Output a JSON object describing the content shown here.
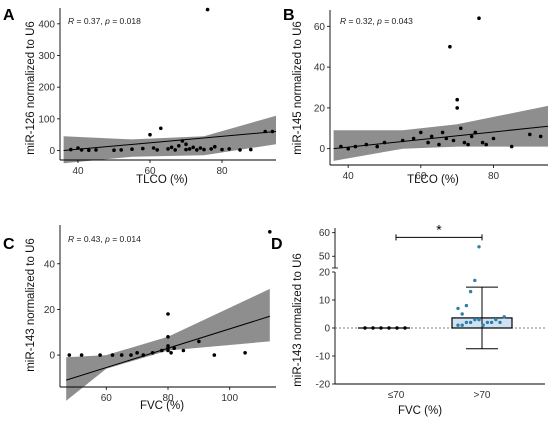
{
  "chart_data": [
    {
      "type": "scatter",
      "panel": "A",
      "xlabel": "TLCO (%)",
      "ylabel": "miR-126 normalized to U6",
      "annotation": "R = 0.37, p = 0.018",
      "xlim": [
        35,
        95
      ],
      "ylim": [
        -30,
        450
      ],
      "xticks": [
        40,
        60,
        80
      ],
      "yticks": [
        0,
        100,
        200,
        300,
        400
      ],
      "fit": {
        "x": [
          36,
          95
        ],
        "y": [
          0,
          60
        ],
        "lower": [
          -40,
          20
        ],
        "upper": [
          45,
          110
        ],
        "band_x": [
          36,
          55,
          75,
          95
        ],
        "band_lo": [
          -40,
          -20,
          -15,
          20
        ],
        "band_hi": [
          45,
          35,
          45,
          110
        ]
      },
      "points": [
        [
          38,
          3
        ],
        [
          40,
          8
        ],
        [
          41,
          2
        ],
        [
          43,
          1
        ],
        [
          45,
          2
        ],
        [
          50,
          1
        ],
        [
          52,
          2
        ],
        [
          55,
          4
        ],
        [
          58,
          6
        ],
        [
          60,
          50
        ],
        [
          61,
          8
        ],
        [
          62,
          2
        ],
        [
          63,
          70
        ],
        [
          65,
          5
        ],
        [
          66,
          10
        ],
        [
          67,
          2
        ],
        [
          68,
          15
        ],
        [
          69,
          30
        ],
        [
          70,
          3
        ],
        [
          70,
          20
        ],
        [
          71,
          5
        ],
        [
          72,
          10
        ],
        [
          73,
          2
        ],
        [
          74,
          8
        ],
        [
          75,
          3
        ],
        [
          76,
          445
        ],
        [
          77,
          5
        ],
        [
          78,
          12
        ],
        [
          80,
          3
        ],
        [
          82,
          5
        ],
        [
          85,
          2
        ],
        [
          88,
          3
        ],
        [
          92,
          60
        ],
        [
          94,
          60
        ]
      ]
    },
    {
      "type": "scatter",
      "panel": "B",
      "xlabel": "TLCO (%)",
      "ylabel": "miR-145 normalized to U6",
      "annotation": "R = 0.32, p = 0.043",
      "xlim": [
        35,
        95
      ],
      "ylim": [
        -8,
        68
      ],
      "xticks": [
        40,
        60,
        80
      ],
      "yticks": [
        0,
        20,
        40,
        60
      ],
      "fit": {
        "band_x": [
          36,
          55,
          70,
          95
        ],
        "band_lo": [
          -6,
          0,
          1,
          1
        ],
        "band_hi": [
          9,
          9,
          12,
          21
        ],
        "line_x": [
          36,
          95
        ],
        "line_y": [
          0,
          11
        ]
      },
      "points": [
        [
          38,
          1
        ],
        [
          40,
          0
        ],
        [
          42,
          1
        ],
        [
          45,
          2
        ],
        [
          48,
          1
        ],
        [
          50,
          3
        ],
        [
          55,
          4
        ],
        [
          58,
          5
        ],
        [
          60,
          8
        ],
        [
          62,
          3
        ],
        [
          63,
          6
        ],
        [
          65,
          2
        ],
        [
          66,
          8
        ],
        [
          67,
          5
        ],
        [
          68,
          50
        ],
        [
          69,
          4
        ],
        [
          70,
          24
        ],
        [
          70,
          20
        ],
        [
          71,
          10
        ],
        [
          72,
          3
        ],
        [
          73,
          2
        ],
        [
          74,
          6
        ],
        [
          75,
          8
        ],
        [
          76,
          64
        ],
        [
          77,
          3
        ],
        [
          78,
          2
        ],
        [
          80,
          5
        ],
        [
          85,
          1
        ],
        [
          90,
          7
        ],
        [
          93,
          6
        ]
      ]
    },
    {
      "type": "scatter",
      "panel": "C",
      "xlabel": "FVC (%)",
      "ylabel": "miR-143 normalized to U6",
      "annotation": "R = 0.43, p = 0.014",
      "xlim": [
        45,
        115
      ],
      "ylim": [
        -14,
        57
      ],
      "xticks": [
        60,
        80,
        100
      ],
      "yticks": [
        0,
        20,
        40
      ],
      "fit": {
        "band_x": [
          47,
          60,
          80,
          113
        ],
        "band_lo": [
          -20,
          -6,
          2,
          6
        ],
        "band_hi": [
          -1,
          0,
          8,
          29
        ],
        "line_x": [
          47,
          113
        ],
        "line_y": [
          -11,
          17
        ]
      },
      "points": [
        [
          48,
          0
        ],
        [
          52,
          0
        ],
        [
          58,
          0
        ],
        [
          62,
          0
        ],
        [
          65,
          0
        ],
        [
          68,
          0
        ],
        [
          70,
          1
        ],
        [
          72,
          0
        ],
        [
          75,
          1
        ],
        [
          78,
          2
        ],
        [
          80,
          18
        ],
        [
          80,
          8
        ],
        [
          80,
          4
        ],
        [
          80,
          3
        ],
        [
          80,
          2
        ],
        [
          81,
          1
        ],
        [
          82,
          3
        ],
        [
          85,
          2
        ],
        [
          90,
          6
        ],
        [
          95,
          0
        ],
        [
          105,
          1
        ],
        [
          113,
          54
        ]
      ]
    },
    {
      "type": "bar",
      "panel": "D",
      "xlabel": "FVC (%)",
      "ylabel": "miR-143 normalized to U6",
      "categories": [
        "≤70",
        ">70"
      ],
      "values": [
        0,
        3.6
      ],
      "error": [
        0,
        11
      ],
      "significance": "*",
      "ylim_lower": [
        -20,
        20
      ],
      "yticks_lower": [
        -20,
        -10,
        0,
        10,
        20
      ],
      "ylim_upper": [
        45,
        62
      ],
      "yticks_upper": [
        50,
        60
      ],
      "points_low": [
        [
          0,
          0
        ],
        [
          0,
          0
        ],
        [
          0,
          0
        ],
        [
          0,
          0
        ],
        [
          0,
          0
        ],
        [
          0,
          0
        ]
      ],
      "points_high": [
        1,
        1,
        2,
        2,
        3,
        3,
        1,
        2,
        2,
        3,
        2,
        4,
        7,
        5,
        8,
        13,
        17,
        54
      ]
    }
  ]
}
